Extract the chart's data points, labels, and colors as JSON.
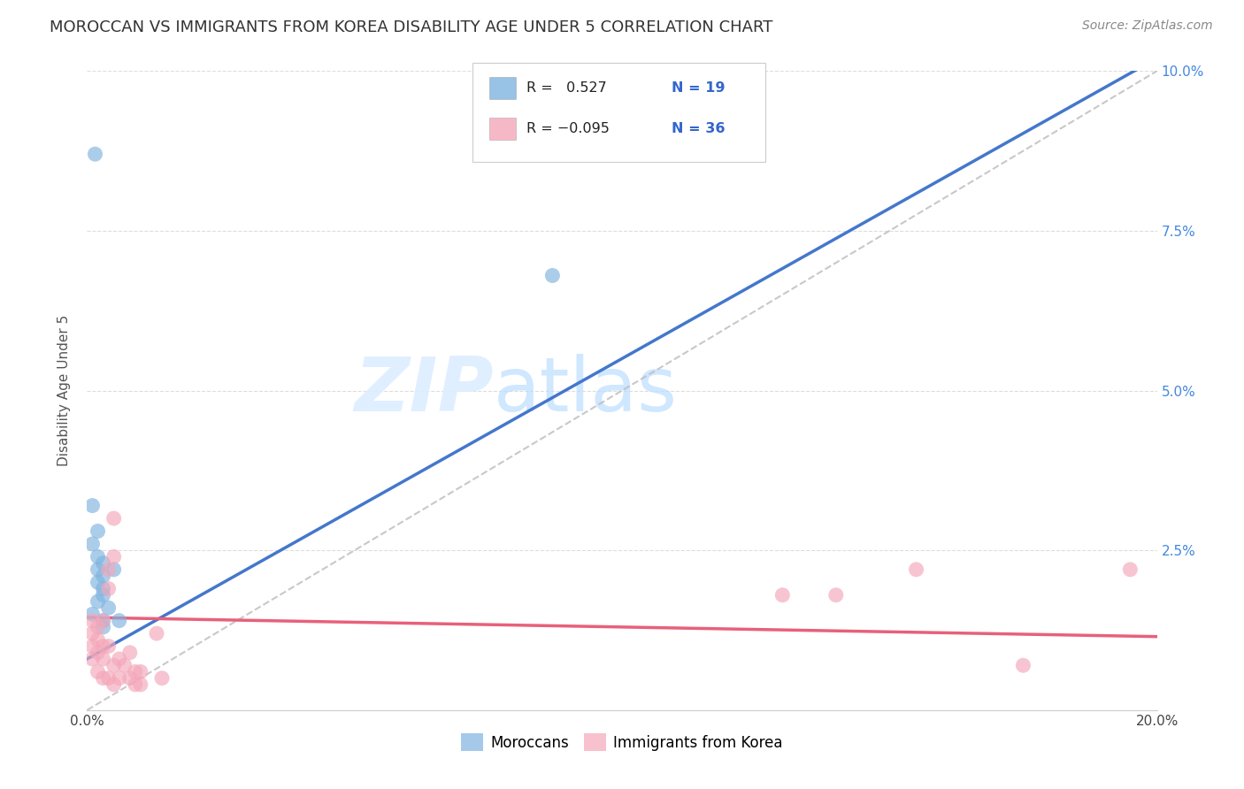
{
  "title": "MOROCCAN VS IMMIGRANTS FROM KOREA DISABILITY AGE UNDER 5 CORRELATION CHART",
  "source": "Source: ZipAtlas.com",
  "ylabel": "Disability Age Under 5",
  "xlim": [
    0.0,
    0.2
  ],
  "ylim": [
    0.0,
    0.1
  ],
  "xtick_positions": [
    0.0,
    0.2
  ],
  "xtick_labels": [
    "0.0%",
    "20.0%"
  ],
  "ytick_positions": [
    0.0,
    0.025,
    0.05,
    0.075,
    0.1
  ],
  "ytick_labels": [
    "",
    "2.5%",
    "5.0%",
    "7.5%",
    "10.0%"
  ],
  "moroccan_R": 0.527,
  "moroccan_N": 19,
  "korea_R": -0.095,
  "korea_N": 36,
  "moroccan_color": "#7EB3E0",
  "korea_color": "#F4A7B9",
  "moroccan_line_color": "#4477CC",
  "korea_line_color": "#E8607A",
  "diagonal_color": "#BBBBBB",
  "background_color": "#FFFFFF",
  "grid_color": "#DDDDDD",
  "watermark_zip": "ZIP",
  "watermark_atlas": "atlas",
  "blue_line_x0": 0.0,
  "blue_line_y0": 0.008,
  "blue_line_x1": 0.2,
  "blue_line_y1": 0.102,
  "pink_line_x0": 0.0,
  "pink_line_y0": 0.0145,
  "pink_line_x1": 0.2,
  "pink_line_y1": 0.0115,
  "moroccan_points": [
    [
      0.0015,
      0.087
    ],
    [
      0.001,
      0.032
    ],
    [
      0.002,
      0.028
    ],
    [
      0.001,
      0.026
    ],
    [
      0.002,
      0.024
    ],
    [
      0.003,
      0.023
    ],
    [
      0.002,
      0.022
    ],
    [
      0.003,
      0.021
    ],
    [
      0.002,
      0.02
    ],
    [
      0.003,
      0.019
    ],
    [
      0.003,
      0.018
    ],
    [
      0.002,
      0.017
    ],
    [
      0.004,
      0.016
    ],
    [
      0.001,
      0.015
    ],
    [
      0.003,
      0.014
    ],
    [
      0.003,
      0.013
    ],
    [
      0.005,
      0.022
    ],
    [
      0.006,
      0.014
    ],
    [
      0.087,
      0.068
    ]
  ],
  "korea_points": [
    [
      0.001,
      0.014
    ],
    [
      0.001,
      0.012
    ],
    [
      0.001,
      0.01
    ],
    [
      0.001,
      0.008
    ],
    [
      0.002,
      0.013
    ],
    [
      0.002,
      0.011
    ],
    [
      0.002,
      0.009
    ],
    [
      0.002,
      0.006
    ],
    [
      0.003,
      0.014
    ],
    [
      0.003,
      0.01
    ],
    [
      0.003,
      0.008
    ],
    [
      0.003,
      0.005
    ],
    [
      0.004,
      0.022
    ],
    [
      0.004,
      0.019
    ],
    [
      0.004,
      0.01
    ],
    [
      0.004,
      0.005
    ],
    [
      0.005,
      0.03
    ],
    [
      0.005,
      0.024
    ],
    [
      0.005,
      0.007
    ],
    [
      0.005,
      0.004
    ],
    [
      0.006,
      0.008
    ],
    [
      0.006,
      0.005
    ],
    [
      0.007,
      0.007
    ],
    [
      0.008,
      0.009
    ],
    [
      0.008,
      0.005
    ],
    [
      0.009,
      0.006
    ],
    [
      0.009,
      0.004
    ],
    [
      0.01,
      0.006
    ],
    [
      0.01,
      0.004
    ],
    [
      0.013,
      0.012
    ],
    [
      0.014,
      0.005
    ],
    [
      0.13,
      0.018
    ],
    [
      0.14,
      0.018
    ],
    [
      0.155,
      0.022
    ],
    [
      0.175,
      0.007
    ],
    [
      0.195,
      0.022
    ]
  ],
  "title_fontsize": 13,
  "label_fontsize": 11,
  "tick_fontsize": 11,
  "legend_fontsize": 12,
  "source_fontsize": 10
}
